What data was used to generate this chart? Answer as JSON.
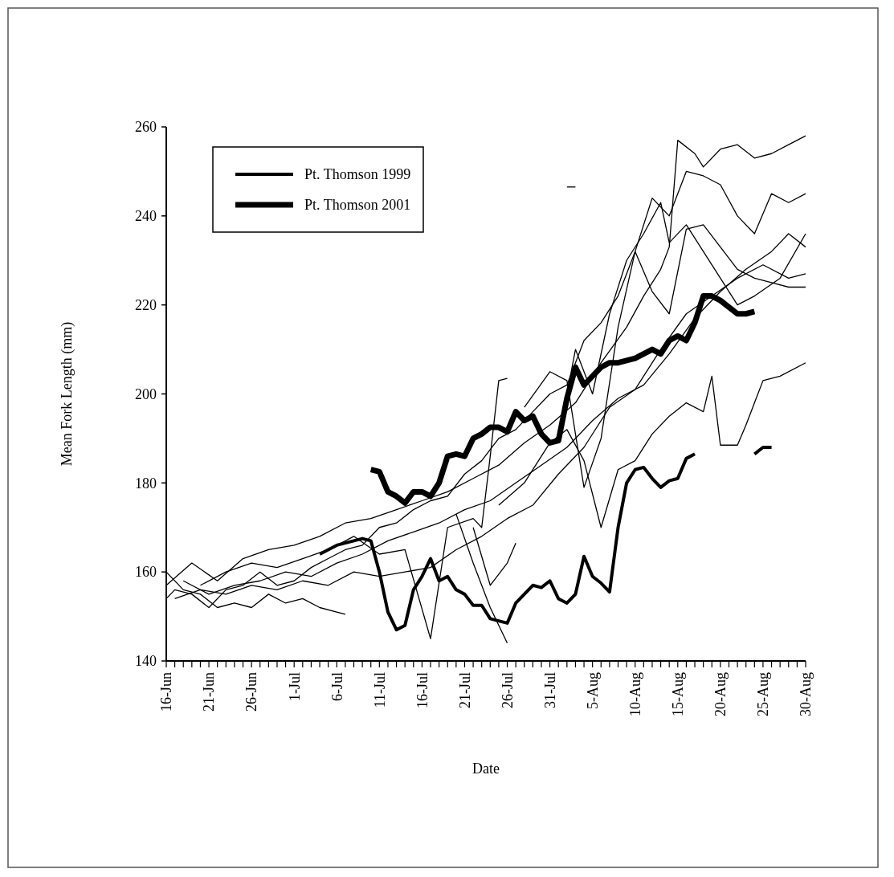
{
  "chart_data": {
    "type": "line",
    "xlabel": "Date",
    "ylabel": "Mean Fork Length (mm)",
    "ylim": [
      140,
      260
    ],
    "yticks": [
      140,
      160,
      180,
      200,
      220,
      240,
      260
    ],
    "xlim": [
      "--06-16",
      "--08-30"
    ],
    "xticks": [
      {
        "value": "--06-16",
        "label": "16-Jun"
      },
      {
        "value": "--06-17",
        "label": null
      },
      {
        "value": "--06-18",
        "label": null
      },
      {
        "value": "--06-19",
        "label": null
      },
      {
        "value": "--06-20",
        "label": null
      },
      {
        "value": "--06-21",
        "label": "21-Jun"
      },
      {
        "value": "--06-22",
        "label": null
      },
      {
        "value": "--06-23",
        "label": null
      },
      {
        "value": "--06-24",
        "label": null
      },
      {
        "value": "--06-25",
        "label": null
      },
      {
        "value": "--06-26",
        "label": "26-Jun"
      },
      {
        "value": "--06-27",
        "label": null
      },
      {
        "value": "--06-28",
        "label": null
      },
      {
        "value": "--06-29",
        "label": null
      },
      {
        "value": "--06-30",
        "label": null
      },
      {
        "value": "--07-01",
        "label": "1-Jul"
      },
      {
        "value": "--07-02",
        "label": null
      },
      {
        "value": "--07-03",
        "label": null
      },
      {
        "value": "--07-04",
        "label": null
      },
      {
        "value": "--07-05",
        "label": null
      },
      {
        "value": "--07-06",
        "label": "6-Jul"
      },
      {
        "value": "--07-07",
        "label": null
      },
      {
        "value": "--07-08",
        "label": null
      },
      {
        "value": "--07-09",
        "label": null
      },
      {
        "value": "--07-10",
        "label": null
      },
      {
        "value": "--07-11",
        "label": "11-Jul"
      },
      {
        "value": "--07-12",
        "label": null
      },
      {
        "value": "--07-13",
        "label": null
      },
      {
        "value": "--07-14",
        "label": null
      },
      {
        "value": "--07-15",
        "label": null
      },
      {
        "value": "--07-16",
        "label": "16-Jul"
      },
      {
        "value": "--07-17",
        "label": null
      },
      {
        "value": "--07-18",
        "label": null
      },
      {
        "value": "--07-19",
        "label": null
      },
      {
        "value": "--07-20",
        "label": null
      },
      {
        "value": "--07-21",
        "label": "21-Jul"
      },
      {
        "value": "--07-22",
        "label": null
      },
      {
        "value": "--07-23",
        "label": null
      },
      {
        "value": "--07-24",
        "label": null
      },
      {
        "value": "--07-25",
        "label": null
      },
      {
        "value": "--07-26",
        "label": "26-Jul"
      },
      {
        "value": "--07-27",
        "label": null
      },
      {
        "value": "--07-28",
        "label": null
      },
      {
        "value": "--07-29",
        "label": null
      },
      {
        "value": "--07-30",
        "label": null
      },
      {
        "value": "--07-31",
        "label": "31-Jul"
      },
      {
        "value": "--08-01",
        "label": null
      },
      {
        "value": "--08-02",
        "label": null
      },
      {
        "value": "--08-03",
        "label": null
      },
      {
        "value": "--08-04",
        "label": null
      },
      {
        "value": "--08-05",
        "label": "5-Aug"
      },
      {
        "value": "--08-06",
        "label": null
      },
      {
        "value": "--08-07",
        "label": null
      },
      {
        "value": "--08-08",
        "label": null
      },
      {
        "value": "--08-09",
        "label": null
      },
      {
        "value": "--08-10",
        "label": "10-Aug"
      },
      {
        "value": "--08-11",
        "label": null
      },
      {
        "value": "--08-12",
        "label": null
      },
      {
        "value": "--08-13",
        "label": null
      },
      {
        "value": "--08-14",
        "label": null
      },
      {
        "value": "--08-15",
        "label": "15-Aug"
      },
      {
        "value": "--08-16",
        "label": null
      },
      {
        "value": "--08-17",
        "label": null
      },
      {
        "value": "--08-18",
        "label": null
      },
      {
        "value": "--08-19",
        "label": null
      },
      {
        "value": "--08-20",
        "label": "20-Aug"
      },
      {
        "value": "--08-21",
        "label": null
      },
      {
        "value": "--08-22",
        "label": null
      },
      {
        "value": "--08-23",
        "label": null
      },
      {
        "value": "--08-24",
        "label": null
      },
      {
        "value": "--08-25",
        "label": "25-Aug"
      },
      {
        "value": "--08-26",
        "label": null
      },
      {
        "value": "--08-27",
        "label": null
      },
      {
        "value": "--08-28",
        "label": null
      },
      {
        "value": "--08-29",
        "label": null
      },
      {
        "value": "--08-30",
        "label": "30-Aug"
      }
    ],
    "grid": false,
    "legend": "top left",
    "marker": "none",
    "line_style": "solid",
    "series": [
      {
        "name": "Pt. Thomson 1999",
        "color": "#000000",
        "x": [
          "--07-04",
          "--07-05",
          "--07-06",
          "--07-07",
          "--07-08",
          "--07-09",
          "--07-10",
          "--07-11",
          "--07-12",
          "--07-13",
          "--07-14",
          "--07-15",
          "--07-16",
          "--07-17",
          "--07-18",
          "--07-19",
          "--07-20",
          "--07-21",
          "--07-22",
          "--07-23",
          "--07-24",
          "--07-25",
          "--07-26",
          "--07-27",
          "--07-28",
          "--07-29",
          "--07-30",
          "--07-31",
          "--08-01",
          "--08-02",
          "--08-03",
          "--08-04",
          "--08-05",
          "--08-06",
          "--08-07",
          "--08-08",
          "--08-09",
          "--08-10",
          "--08-11",
          "--08-12",
          "--08-13",
          "--08-14",
          "--08-15",
          "--08-16",
          "--08-17",
          "--08-18",
          "--08-19",
          "--08-20",
          "--08-21",
          "--08-22",
          "--08-23",
          "--08-24",
          "--08-25",
          "--08-26"
        ],
        "values": [
          164,
          165,
          166,
          166.5,
          167,
          167.5,
          167,
          160,
          151,
          147,
          148,
          156,
          159,
          163,
          158,
          159,
          156,
          155,
          152.5,
          152.5,
          149.5,
          149,
          148.5,
          153,
          155,
          157,
          156.5,
          158,
          154,
          153,
          155,
          163.5,
          159,
          157.5,
          155.5,
          170,
          180,
          183,
          183.5,
          181,
          179,
          180.5,
          181,
          185.5,
          186.5,
          null,
          null,
          null,
          null,
          null,
          null,
          186.5,
          188,
          188
        ]
      },
      {
        "name": "Pt. Thomson 2001",
        "color": "#000000",
        "x": [
          "--07-10",
          "--07-11",
          "--07-12",
          "--07-13",
          "--07-14",
          "--07-15",
          "--07-16",
          "--07-17",
          "--07-18",
          "--07-19",
          "--07-20",
          "--07-21",
          "--07-22",
          "--07-23",
          "--07-24",
          "--07-25",
          "--07-26",
          "--07-27",
          "--07-28",
          "--07-29",
          "--07-30",
          "--07-31",
          "--08-01",
          "--08-02",
          "--08-03",
          "--08-04",
          "--08-05",
          "--08-06",
          "--08-07",
          "--08-08",
          "--08-09",
          "--08-10",
          "--08-11",
          "--08-12",
          "--08-13",
          "--08-14",
          "--08-15",
          "--08-16",
          "--08-17",
          "--08-18",
          "--08-19",
          "--08-20",
          "--08-21",
          "--08-22",
          "--08-23",
          "--08-24"
        ],
        "values": [
          183,
          182.5,
          178,
          177,
          175.5,
          178,
          178,
          177,
          180,
          186,
          186.5,
          186,
          190,
          191,
          192.5,
          192.5,
          191.5,
          196,
          194,
          195,
          191,
          189,
          189.5,
          199,
          206,
          202,
          204,
          206,
          207,
          207,
          207.5,
          208,
          209,
          210,
          209,
          212,
          213,
          212,
          216,
          222,
          222,
          221,
          219.5,
          218,
          218,
          218.5
        ]
      },
      {
        "color": "#000000",
        "x": [
          "--06-16",
          "--06-18",
          "--06-20",
          "--06-22",
          "--06-24",
          "--06-26",
          "--06-28",
          "--06-30",
          "--07-02",
          "--07-04",
          "--07-06",
          "--07-07"
        ],
        "values": [
          160,
          156,
          155,
          152,
          153,
          152,
          155,
          153,
          154,
          152,
          151,
          150.5
        ]
      },
      {
        "color": "#000000",
        "x": [
          "--06-16",
          "--06-17",
          "--06-19",
          "--06-21",
          "--06-23",
          "--06-25",
          "--06-27",
          "--06-29",
          "--07-01",
          "--07-03",
          "--07-05",
          "--07-07",
          "--07-09",
          "--07-11",
          "--07-13",
          "--07-15",
          "--07-17",
          "--07-19",
          "--07-21",
          "--07-23",
          "--07-25",
          "--07-27",
          "--07-29",
          "--07-31",
          "--08-02",
          "--08-04",
          "--08-06",
          "--08-08",
          "--08-10",
          "--08-12",
          "--08-14",
          "--08-16",
          "--08-18",
          "--08-20",
          "--08-22",
          "--08-24",
          "--08-26",
          "--08-28",
          "--08-30"
        ],
        "values": [
          154,
          156,
          155,
          152,
          156,
          157,
          160,
          157,
          158,
          161,
          163,
          165,
          166,
          170,
          171,
          174,
          176,
          177,
          182,
          185,
          190,
          192,
          196,
          200,
          202,
          212,
          216,
          222,
          232,
          244,
          240,
          250,
          249,
          247,
          240,
          236,
          245,
          243,
          245
        ]
      },
      {
        "color": "#000000",
        "x": [
          "--06-16",
          "--06-19",
          "--06-22",
          "--06-25",
          "--06-28",
          "--07-01",
          "--07-04",
          "--07-07",
          "--07-10",
          "--07-13",
          "--07-16",
          "--07-19",
          "--07-22",
          "--07-25",
          "--07-28",
          "--07-31",
          "--08-03",
          "--08-06",
          "--08-09",
          "--08-11",
          "--08-13",
          "--08-14",
          "--08-15",
          "--08-17",
          "--08-18",
          "--08-20",
          "--08-22",
          "--08-24",
          "--08-26",
          "--08-28",
          "--08-30"
        ],
        "values": [
          157,
          162,
          158,
          163,
          165,
          166,
          168,
          171,
          172,
          174,
          176,
          178,
          181,
          184,
          189,
          193,
          198,
          207,
          215,
          222,
          228,
          233,
          257,
          254,
          251,
          255,
          256,
          253,
          254,
          256,
          258
        ]
      },
      {
        "color": "#000000",
        "x": [
          "--06-18",
          "--06-21",
          "--06-24",
          "--06-27",
          "--06-30",
          "--07-03",
          "--07-06",
          "--07-09",
          "--07-12",
          "--07-15",
          "--07-18",
          "--07-21",
          "--07-24",
          "--07-27",
          "--07-30",
          "--08-02",
          "--08-05",
          "--08-08",
          "--08-11",
          "--08-14",
          "--08-17",
          "--08-20",
          "--08-23",
          "--08-26",
          "--08-28",
          "--08-30"
        ],
        "values": [
          158,
          155,
          157,
          158,
          160,
          159,
          162,
          164,
          167,
          169,
          171,
          174,
          176,
          180,
          184,
          188,
          194,
          199,
          202,
          209,
          217,
          223,
          228,
          232,
          236,
          233
        ]
      },
      {
        "color": "#000000",
        "x": [
          "--06-17",
          "--06-20",
          "--06-23",
          "--06-26",
          "--06-29",
          "--07-02",
          "--07-05",
          "--07-08",
          "--07-11",
          "--07-14",
          "--07-17",
          "--07-20",
          "--07-23",
          "--07-26",
          "--07-29",
          "--08-01",
          "--08-04",
          "--08-07",
          "--08-10",
          "--08-13",
          "--08-16",
          "--08-19",
          "--08-22",
          "--08-25",
          "--08-28",
          "--08-30"
        ],
        "values": [
          154,
          156,
          155,
          157,
          156,
          158,
          157,
          160,
          159,
          160,
          161,
          165,
          168,
          172,
          175,
          182,
          188,
          197,
          201,
          210,
          218,
          222,
          226,
          229,
          226,
          227
        ]
      },
      {
        "color": "#000000",
        "x": [
          "--06-20",
          "--06-23",
          "--06-26",
          "--06-29",
          "--07-02",
          "--07-05",
          "--07-08",
          "--07-11",
          "--07-14",
          "--07-17",
          "--07-19",
          "--07-22",
          "--07-23",
          "--07-24",
          "--07-25",
          "--07-26"
        ],
        "values": [
          157,
          160,
          162,
          161,
          163,
          165,
          168,
          164,
          165,
          145,
          170,
          172,
          170,
          186,
          203,
          203.5
        ]
      },
      {
        "color": "#000000",
        "x": [
          "--07-22",
          "--07-24",
          "--07-26",
          "--07-27"
        ],
        "values": [
          170,
          157,
          162,
          166.5
        ]
      },
      {
        "color": "#000000",
        "x": [
          "--07-20",
          "--07-22",
          "--07-24",
          "--07-26"
        ],
        "values": [
          173,
          162,
          152,
          144
        ]
      },
      {
        "color": "#000000",
        "x": [
          "--07-25",
          "--07-28",
          "--07-31",
          "--08-02",
          "--08-04",
          "--08-06",
          "--08-08",
          "--08-10",
          "--08-12",
          "--08-14",
          "--08-16",
          "--08-18",
          "--08-19",
          "--08-20",
          "--08-22",
          "--08-23",
          "--08-24",
          "--08-25",
          "--08-27",
          "--08-30"
        ],
        "values": [
          175,
          180,
          189,
          192,
          185,
          170,
          183,
          185,
          191,
          195,
          198,
          196,
          204,
          188.5,
          188.5,
          193,
          198,
          203,
          204,
          207
        ]
      },
      {
        "color": "#000000",
        "x": [
          "--07-28",
          "--07-31",
          "--08-02",
          "--08-04",
          "--08-06",
          "--08-08",
          "--08-10",
          "--08-12",
          "--08-14",
          "--08-16",
          "--08-18",
          "--08-20",
          "--08-22",
          "--08-24",
          "--08-26",
          "--08-28",
          "--08-30"
        ],
        "values": [
          197,
          205,
          203,
          179,
          190,
          215,
          232,
          223,
          218,
          237,
          238,
          233,
          228,
          226,
          225,
          224,
          224
        ]
      },
      {
        "color": "#000000",
        "x": [
          "--08-01",
          "--08-03",
          "--08-05",
          "--08-07",
          "--08-09",
          "--08-11",
          "--08-13",
          "--08-14",
          "--08-16",
          "--08-18",
          "--08-20",
          "--08-22",
          "--08-24",
          "--08-27",
          "--08-30"
        ],
        "values": [
          190,
          210,
          200,
          218,
          230,
          236,
          243,
          234,
          238,
          232,
          226,
          220,
          222,
          226,
          236
        ]
      },
      {
        "color": "#000000",
        "x": [
          "--08-02",
          "--08-03"
        ],
        "values": [
          246.5,
          246.5
        ]
      }
    ]
  }
}
